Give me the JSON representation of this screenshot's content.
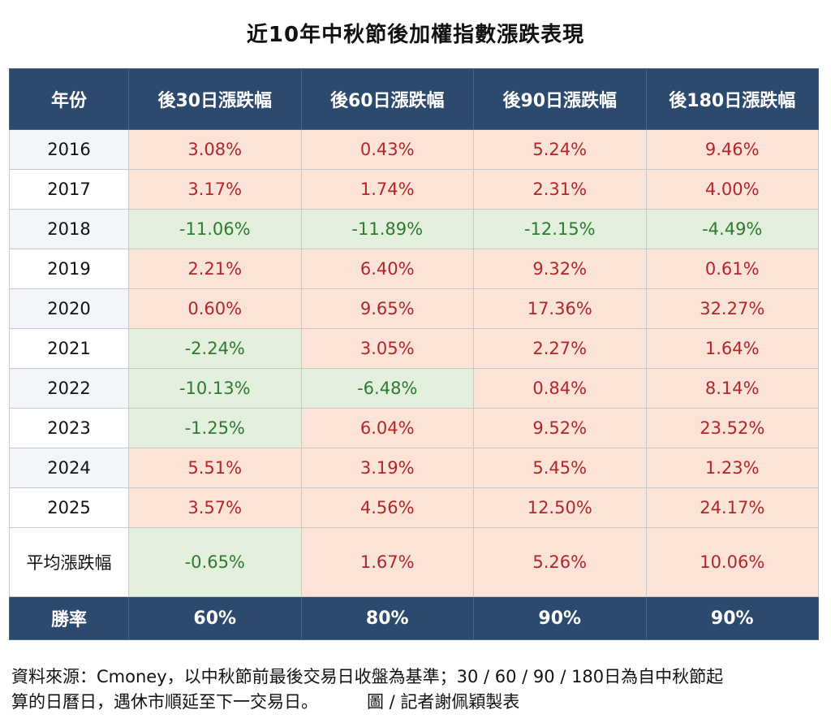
{
  "title": "近10年中秋節後加權指數漲跌表現",
  "headers": [
    "年份",
    "後30日漲跌幅",
    "後60日漲跌幅",
    "後90日漲跌幅",
    "後180日漲跌幅"
  ],
  "rows": [
    {
      "year": "2016",
      "values": [
        "3.08%",
        "0.43%",
        "5.24%",
        "9.46%"
      ]
    },
    {
      "year": "2017",
      "values": [
        "3.17%",
        "1.74%",
        "2.31%",
        "4.00%"
      ]
    },
    {
      "year": "2018",
      "values": [
        "-11.06%",
        "-11.89%",
        "-12.15%",
        "-4.49%"
      ]
    },
    {
      "year": "2019",
      "values": [
        "2.21%",
        "6.40%",
        "9.32%",
        "0.61%"
      ]
    },
    {
      "year": "2020",
      "values": [
        "0.60%",
        "9.65%",
        "17.36%",
        "32.27%"
      ]
    },
    {
      "year": "2021",
      "values": [
        "-2.24%",
        "3.05%",
        "2.27%",
        "1.64%"
      ]
    },
    {
      "year": "2022",
      "values": [
        "-10.13%",
        "-6.48%",
        "0.84%",
        "8.14%"
      ]
    },
    {
      "year": "2023",
      "values": [
        "-1.25%",
        "6.04%",
        "9.52%",
        "23.52%"
      ]
    },
    {
      "year": "2024",
      "values": [
        "5.51%",
        "3.19%",
        "5.45%",
        "1.23%"
      ]
    },
    {
      "year": "2025",
      "values": [
        "3.57%",
        "4.56%",
        "12.50%",
        "24.17%"
      ]
    }
  ],
  "average": {
    "label": "平均漲跌幅",
    "values": [
      "-0.65%",
      "1.67%",
      "5.26%",
      "10.06%"
    ]
  },
  "win_rate": {
    "label": "勝率",
    "values": [
      "60%",
      "80%",
      "90%",
      "90%"
    ]
  },
  "colors": {
    "header": "#2c4a6e",
    "positive_bg": "#fbe3d8",
    "positive_text": "#b2262a",
    "negative_bg": "#e3f0dd",
    "negative_text": "#2e7a2e"
  },
  "note": {
    "line1": "資料來源：Cmoney，以中秋節前最後交易日收盤為基準；30 / 60 / 90 / 180日為自中秋節起",
    "line2": "算的日曆日，遇休市順延至下一交易日。",
    "credit": "圖 / 記者謝佩穎製表"
  }
}
